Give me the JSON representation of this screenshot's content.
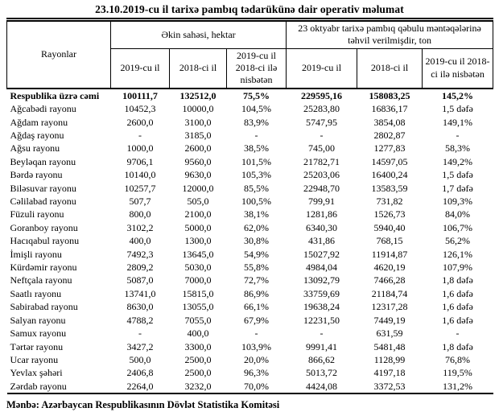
{
  "title": "23.10.2019-cu il tarixə pambıq tədarükünə dair operativ məlumat",
  "source_note": "Mənbə: Azərbaycan Respublikasının Dövlət Statistika Komitəsi",
  "table": {
    "corner_header": "Rayonlar",
    "group_headers": [
      "Əkin sahəsi, hektar",
      "23 oktyabr tarixə pambıq qəbulu məntəqələrinə təhvil verilmişdir, ton"
    ],
    "sub_headers": [
      "2019-cu il",
      "2018-ci il",
      "2019-cu il 2018-ci ilə nisbətən",
      "2019-cu il",
      "2018-ci il",
      "2019-cu il 2018-ci ilə nisbətən"
    ],
    "rows": [
      {
        "name": "Respublika üzrə cəmi",
        "bold": true,
        "values": [
          "100111,7",
          "132512,0",
          "75,5%",
          "229595,16",
          "158083,25",
          "145,2%"
        ]
      },
      {
        "name": "Ağcabədi rayonu",
        "values": [
          "10452,3",
          "10000,0",
          "104,5%",
          "25283,80",
          "16836,17",
          "1,5 dəfə"
        ]
      },
      {
        "name": "Ağdam rayonu",
        "values": [
          "2600,0",
          "3100,0",
          "83,9%",
          "5747,95",
          "3854,08",
          "149,1%"
        ]
      },
      {
        "name": "Ağdaş rayonu",
        "values": [
          "-",
          "3185,0",
          "-",
          "-",
          "2802,87",
          "-"
        ]
      },
      {
        "name": "Ağsu rayonu",
        "values": [
          "1000,0",
          "2600,0",
          "38,5%",
          "745,00",
          "1277,83",
          "58,3%"
        ]
      },
      {
        "name": "Beyləqan rayonu",
        "values": [
          "9706,1",
          "9560,0",
          "101,5%",
          "21782,71",
          "14597,05",
          "149,2%"
        ]
      },
      {
        "name": "Bərdə rayonu",
        "values": [
          "10140,0",
          "9630,0",
          "105,3%",
          "25203,06",
          "16400,24",
          "1,5 dəfə"
        ]
      },
      {
        "name": "Biləsuvar rayonu",
        "values": [
          "10257,7",
          "12000,0",
          "85,5%",
          "22948,70",
          "13583,59",
          "1,7 dəfə"
        ]
      },
      {
        "name": "Cəlilabad rayonu",
        "values": [
          "507,7",
          "505,0",
          "100,5%",
          "799,91",
          "731,82",
          "109,3%"
        ]
      },
      {
        "name": "Füzuli rayonu",
        "values": [
          "800,0",
          "2100,0",
          "38,1%",
          "1281,86",
          "1526,73",
          "84,0%"
        ]
      },
      {
        "name": "Goranboy rayonu",
        "values": [
          "3102,2",
          "5000,0",
          "62,0%",
          "6340,30",
          "5940,40",
          "106,7%"
        ]
      },
      {
        "name": "Hacıqabul rayonu",
        "values": [
          "400,0",
          "1300,0",
          "30,8%",
          "431,86",
          "768,15",
          "56,2%"
        ]
      },
      {
        "name": "İmişli rayonu",
        "values": [
          "7492,3",
          "13645,0",
          "54,9%",
          "15027,92",
          "11914,87",
          "126,1%"
        ]
      },
      {
        "name": "Kürdəmir rayonu",
        "values": [
          "2809,2",
          "5030,0",
          "55,8%",
          "4984,04",
          "4620,19",
          "107,9%"
        ]
      },
      {
        "name": "Neftçala rayonu",
        "values": [
          "5087,0",
          "7000,0",
          "72,7%",
          "13092,79",
          "7466,28",
          "1,8 dəfə"
        ]
      },
      {
        "name": "Saatlı rayonu",
        "values": [
          "13741,0",
          "15815,0",
          "86,9%",
          "33759,69",
          "21184,74",
          "1,6 dəfə"
        ]
      },
      {
        "name": "Sabirabad rayonu",
        "values": [
          "8630,0",
          "13055,0",
          "66,1%",
          "19638,24",
          "12317,28",
          "1,6 dəfə"
        ]
      },
      {
        "name": "Salyan rayonu",
        "values": [
          "4788,2",
          "7055,0",
          "67,9%",
          "12231,50",
          "7449,19",
          "1,6 dəfə"
        ]
      },
      {
        "name": "Samux rayonu",
        "values": [
          "-",
          "400,0",
          "-",
          "-",
          "631,59",
          "-"
        ]
      },
      {
        "name": "Tərtər rayonu",
        "values": [
          "3427,2",
          "3300,0",
          "103,9%",
          "9991,41",
          "5481,48",
          "1,8 dəfə"
        ]
      },
      {
        "name": "Ucar rayonu",
        "values": [
          "500,0",
          "2500,0",
          "20,0%",
          "866,62",
          "1128,99",
          "76,8%"
        ]
      },
      {
        "name": "Yevlax şəhəri",
        "values": [
          "2406,8",
          "2500,0",
          "96,3%",
          "5013,72",
          "4197,18",
          "119,5%"
        ]
      },
      {
        "name": "Zərdab rayonu",
        "values": [
          "2264,0",
          "3232,0",
          "70,0%",
          "4424,08",
          "3372,53",
          "131,2%"
        ]
      }
    ]
  }
}
